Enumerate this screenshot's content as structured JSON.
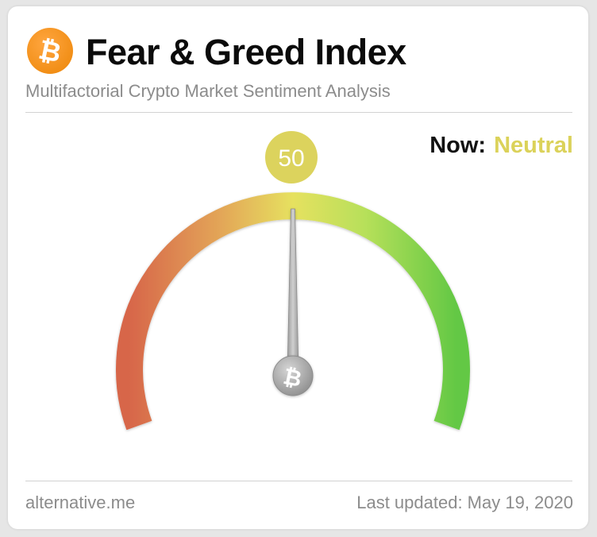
{
  "header": {
    "title": "Fear & Greed Index",
    "subtitle": "Multifactorial Crypto Market Sentiment Analysis",
    "logo_icon": "bitcoin-icon",
    "logo_color": "#f7931a"
  },
  "status": {
    "now_label": "Now:",
    "classification": "Neutral",
    "classification_color": "#dbd25a"
  },
  "gauge": {
    "value": 50,
    "value_label": "50",
    "min": 0,
    "max": 100,
    "bubble_color": "#dcd35d",
    "gradient_colors": [
      "#d7664a",
      "#e3a658",
      "#e6e15f",
      "#b7e05a",
      "#63c844"
    ],
    "needle_icon": "bitcoin-icon"
  },
  "footer": {
    "source": "alternative.me",
    "last_updated": "Last updated: May 19, 2020"
  }
}
